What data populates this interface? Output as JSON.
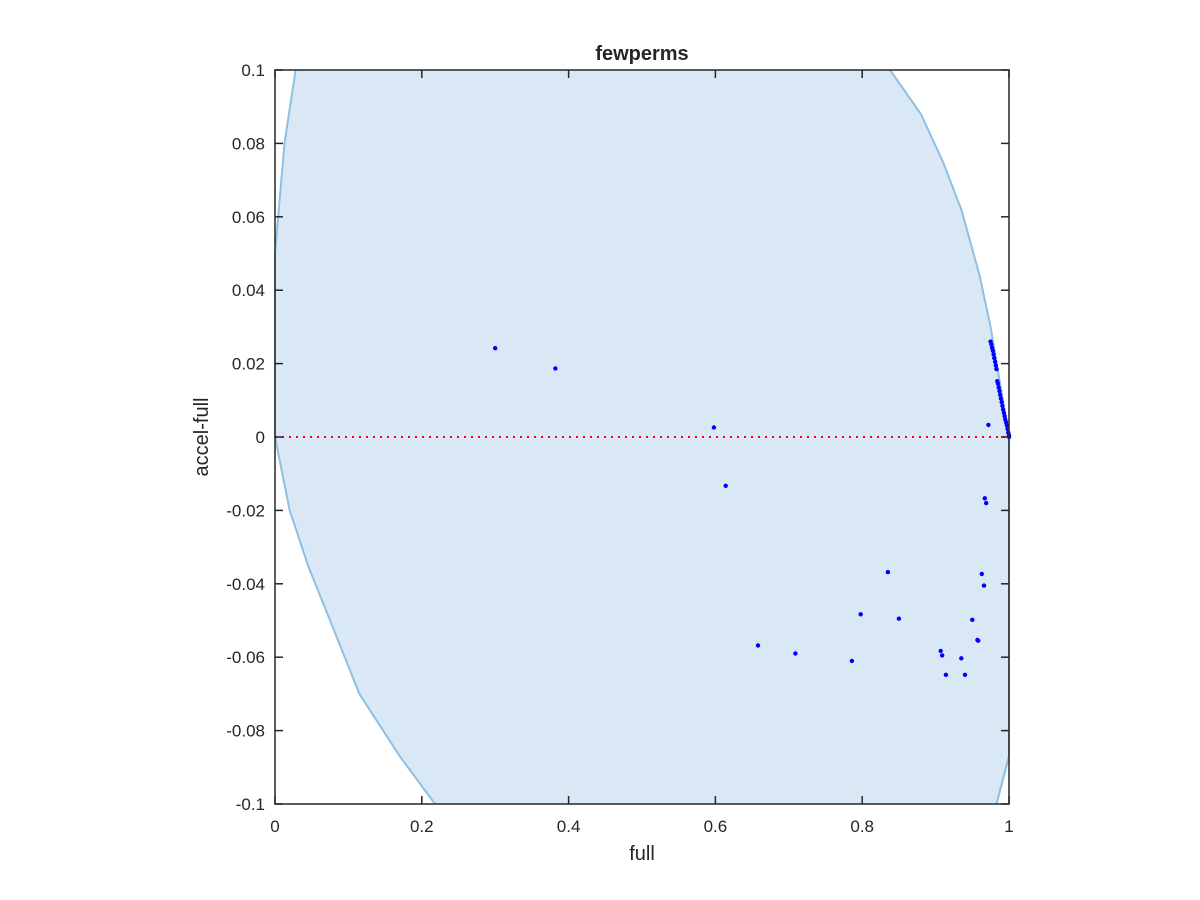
{
  "chart_data": {
    "type": "scatter",
    "title": "fewperms",
    "xlabel": "full",
    "ylabel": "accel-full",
    "xlim": [
      0,
      1
    ],
    "ylim": [
      -0.1,
      0.1
    ],
    "x_ticks": [
      "0",
      "0.2",
      "0.4",
      "0.6",
      "0.8",
      "1"
    ],
    "y_ticks": [
      "-0.1",
      "-0.08",
      "-0.06",
      "-0.04",
      "-0.02",
      "0",
      "0.02",
      "0.04",
      "0.06",
      "0.08",
      "0.1"
    ],
    "grid": false,
    "legend": "none",
    "reference_line": {
      "y": 0,
      "style": "dotted",
      "color": "#ff0000"
    },
    "feasible_region": {
      "fill_color": "#d9e8f4",
      "edge_color": "#8ec0e4",
      "boundary_left": [
        [
          0.028,
          0.1
        ],
        [
          0.013,
          0.08
        ],
        [
          0.0,
          0.05
        ],
        [
          0.0,
          0.0
        ],
        [
          0.02,
          -0.02
        ],
        [
          0.045,
          -0.035
        ],
        [
          0.075,
          -0.05
        ],
        [
          0.115,
          -0.07
        ],
        [
          0.17,
          -0.087
        ],
        [
          0.218,
          -0.1
        ]
      ],
      "boundary_right": [
        [
          0.838,
          0.1
        ],
        [
          0.88,
          0.088
        ],
        [
          0.91,
          0.075
        ],
        [
          0.935,
          0.062
        ],
        [
          0.96,
          0.044
        ],
        [
          0.975,
          0.03
        ],
        [
          1.0,
          0.0
        ],
        [
          1.0,
          -0.087
        ],
        [
          0.983,
          -0.1
        ]
      ]
    },
    "series": [
      {
        "color": "#0000ff",
        "points": [
          [
            0.3,
            0.0242
          ],
          [
            0.382,
            0.0187
          ],
          [
            0.598,
            0.0026
          ],
          [
            0.614,
            -0.0133
          ],
          [
            0.658,
            -0.0568
          ],
          [
            0.709,
            -0.059
          ],
          [
            0.786,
            -0.061
          ],
          [
            0.798,
            -0.0483
          ],
          [
            0.835,
            -0.0368
          ],
          [
            0.85,
            -0.0495
          ],
          [
            0.907,
            -0.0583
          ],
          [
            0.909,
            -0.0595
          ],
          [
            0.914,
            -0.0648
          ],
          [
            0.935,
            -0.0603
          ],
          [
            0.94,
            -0.0648
          ],
          [
            0.95,
            -0.0498
          ],
          [
            0.957,
            -0.0553
          ],
          [
            0.958,
            -0.0555
          ],
          [
            0.963,
            -0.0373
          ],
          [
            0.966,
            -0.0405
          ],
          [
            0.967,
            -0.0167
          ],
          [
            0.969,
            -0.018
          ],
          [
            0.972,
            0.0033
          ],
          [
            0.975,
            0.026
          ],
          [
            0.976,
            0.0252
          ],
          [
            0.977,
            0.0243
          ],
          [
            0.978,
            0.0235
          ],
          [
            0.979,
            0.0225
          ],
          [
            0.98,
            0.0215
          ],
          [
            0.981,
            0.0205
          ],
          [
            0.982,
            0.0195
          ],
          [
            0.983,
            0.0185
          ],
          [
            0.984,
            0.0152
          ],
          [
            0.985,
            0.0145
          ],
          [
            0.986,
            0.0135
          ],
          [
            0.987,
            0.0125
          ],
          [
            0.988,
            0.0115
          ],
          [
            0.989,
            0.0105
          ],
          [
            0.99,
            0.0095
          ],
          [
            0.991,
            0.0085
          ],
          [
            0.992,
            0.0075
          ],
          [
            0.993,
            0.0066
          ],
          [
            0.994,
            0.0057
          ],
          [
            0.995,
            0.0048
          ],
          [
            0.996,
            0.004
          ],
          [
            0.997,
            0.0032
          ],
          [
            0.998,
            0.0022
          ],
          [
            0.999,
            0.0012
          ],
          [
            1.0,
            0.0005
          ],
          [
            1.0,
            0.0
          ]
        ]
      }
    ]
  }
}
